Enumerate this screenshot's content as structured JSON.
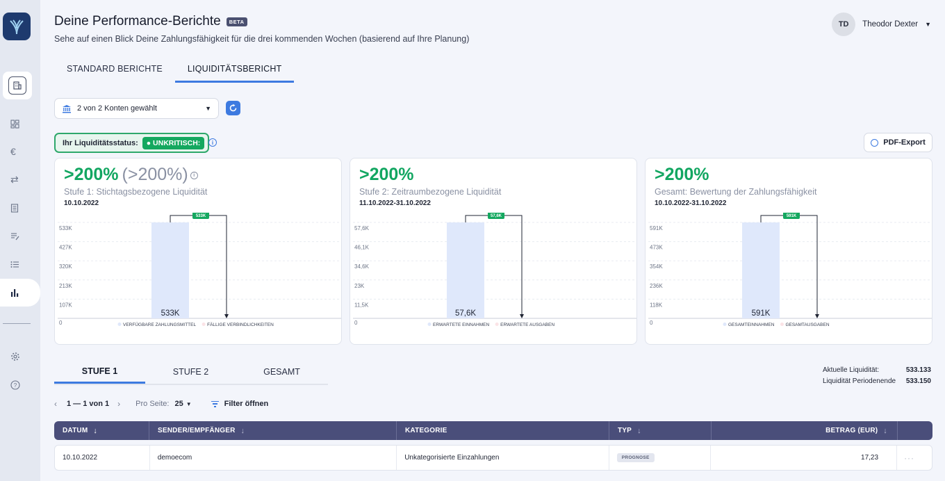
{
  "header": {
    "title": "Deine Performance-Berichte",
    "beta": "BETA",
    "subtitle": "Sehe auf einen Blick Deine Zahlungsfähigkeit für die drei kommenden Wochen (basierend auf Ihre Planung)"
  },
  "user": {
    "initials": "TD",
    "name": "Theodor Dexter"
  },
  "top_tabs": [
    {
      "label": "STANDARD BERICHTE",
      "active": false
    },
    {
      "label": "LIQUIDITÄTSBERICHT",
      "active": true
    }
  ],
  "accounts": {
    "selected_label": "2 von 2  Konten gewählt"
  },
  "status": {
    "label": "Ihr Liquiditätsstatus:",
    "badge": "● UNKRITISCH:"
  },
  "pdf_export_label": "PDF-Export",
  "colors": {
    "accent": "#3d7ae0",
    "success": "#12a661",
    "bar_income": "#dfe8fb",
    "table_header": "#4a4e7a"
  },
  "cards": [
    {
      "big": ">200%",
      "big_secondary": "(>200%)",
      "has_info": true,
      "subtitle": "Stufe 1: Stichtagsbezogene Liquidität",
      "date": "10.10.2022",
      "chart_data": {
        "type": "bar",
        "yticks": [
          "533K",
          "427K",
          "320K",
          "213K",
          "107K",
          "0"
        ],
        "ylim": [
          0,
          533
        ],
        "income": {
          "name": "VERFÜGBARE ZAHLUNGSMITTEL",
          "value": 533,
          "label": "533K"
        },
        "expense": {
          "name": "FÄLLIGE VERBINDLICHKEITEN",
          "value": 0
        },
        "marker_label": "533K"
      }
    },
    {
      "big": ">200%",
      "big_secondary": "",
      "has_info": false,
      "subtitle": "Stufe 2: Zeitraumbezogene Liquidität",
      "date": "11.10.2022-31.10.2022",
      "chart_data": {
        "type": "bar",
        "yticks": [
          "57,6K",
          "46,1K",
          "34,6K",
          "23K",
          "11,5K",
          "0"
        ],
        "ylim": [
          0,
          57.6
        ],
        "income": {
          "name": "ERWARTETE EINNAHMEN",
          "value": 57.6,
          "label": "57,6K"
        },
        "expense": {
          "name": "ERWARTETE AUSGABEN",
          "value": 0
        },
        "marker_label": "57,6K"
      }
    },
    {
      "big": ">200%",
      "big_secondary": "",
      "has_info": false,
      "subtitle": "Gesamt: Bewertung der Zahlungsfähigkeit",
      "date": "10.10.2022-31.10.2022",
      "chart_data": {
        "type": "bar",
        "yticks": [
          "591K",
          "473K",
          "354K",
          "236K",
          "118K",
          "0"
        ],
        "ylim": [
          0,
          591
        ],
        "income": {
          "name": "GESAMTEINNAHMEN",
          "value": 591,
          "label": "591K"
        },
        "expense": {
          "name": "GESAMTAUSGABEN",
          "value": 0
        },
        "marker_label": "591K"
      }
    }
  ],
  "bottom_tabs": [
    {
      "label": "STUFE 1",
      "active": true
    },
    {
      "label": "STUFE 2",
      "active": false
    },
    {
      "label": "GESAMT",
      "active": false
    }
  ],
  "summary": {
    "current_label": "Aktuelle Liquidität:",
    "current_value": "533.133",
    "end_label": "Liquidität Periodenende",
    "end_value": "533.150"
  },
  "pagination": {
    "range": "1 — 1 von 1",
    "per_page_label": "Pro Seite:",
    "per_page": "25",
    "filter_label": "Filter öffnen"
  },
  "table": {
    "columns": [
      "DATUM",
      "SENDER/EMPFÄNGER",
      "KATEGORIE",
      "TYP",
      "BETRAG (EUR)"
    ],
    "rows": [
      {
        "date": "10.10.2022",
        "party": "demoecom",
        "category": "Unkategorisierte Einzahlungen",
        "type": "PROGNOSE",
        "amount": "17,23"
      }
    ]
  }
}
